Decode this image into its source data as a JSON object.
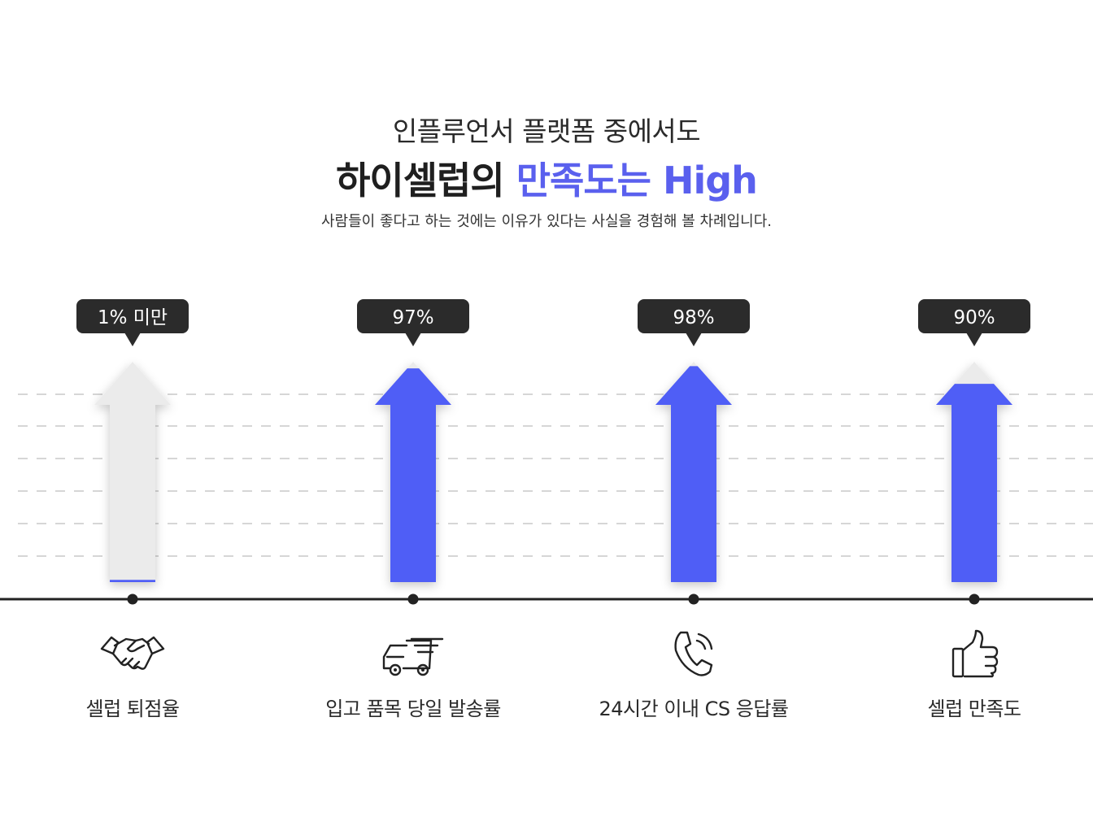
{
  "header": {
    "subtitle": "인플루언서 플랫폼 중에서도",
    "title_main": "하이셀럽의 ",
    "title_accent": "만족도는 High",
    "description": "사람들이 좋다고 하는 것에는 이유가 있다는 사실을 경험해 볼 차례입니다."
  },
  "colors": {
    "accent": "#5a60ee",
    "fill": "#4f5ef6",
    "track": "#ebebeb",
    "tooltip": "#2b2b2b",
    "grid": "#c8c8c8",
    "axis": "#222222"
  },
  "chart_data": {
    "type": "bar",
    "categories": [
      "셀럽 퇴점율",
      "입고 품목 당일 발송률",
      "24시간 이내 CS 응답률",
      "셀럽 만족도"
    ],
    "values": [
      1,
      97,
      98,
      90
    ],
    "value_labels": [
      "1% 미만",
      "97%",
      "98%",
      "90%"
    ],
    "ylim": [
      0,
      100
    ],
    "grid": true,
    "icons": [
      "handshake-icon",
      "delivery-truck-icon",
      "phone-icon",
      "thumbs-up-icon"
    ]
  }
}
